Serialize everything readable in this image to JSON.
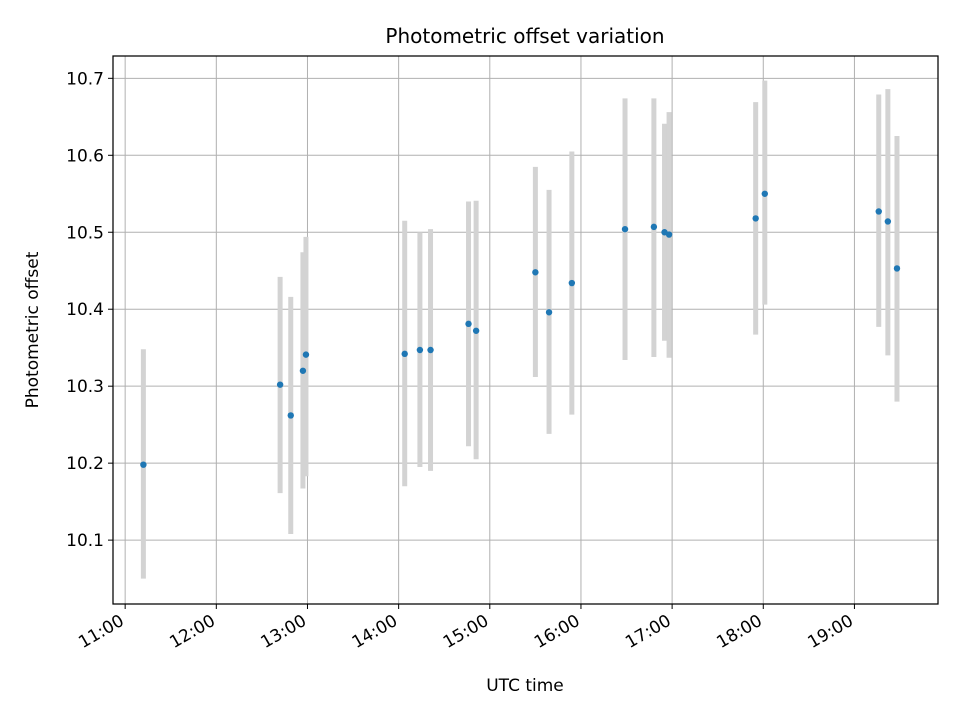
{
  "chart_data": {
    "type": "scatter",
    "title": "Photometric offset variation",
    "xlabel": "UTC time",
    "ylabel": "Photometric offset",
    "x_ticks": [
      "11:00",
      "12:00",
      "13:00",
      "14:00",
      "15:00",
      "16:00",
      "17:00",
      "18:00",
      "19:00"
    ],
    "y_ticks": [
      "10.1",
      "10.2",
      "10.3",
      "10.4",
      "10.5",
      "10.6",
      "10.7"
    ],
    "xlim": [
      "10:52",
      "19:55"
    ],
    "ylim": [
      10.017,
      10.729
    ],
    "grid": true,
    "colors": {
      "point": "#1f77b4",
      "errorbar": "#d3d3d3",
      "grid": "#b0b0b0"
    },
    "series": [
      {
        "x": [
          "11:12",
          "12:42",
          "12:49",
          "12:57",
          "12:59",
          "14:04",
          "14:14",
          "14:21",
          "14:46",
          "14:51",
          "15:30",
          "15:39",
          "15:54",
          "16:29",
          "16:48",
          "16:55",
          "16:58",
          "17:55",
          "18:01",
          "19:16",
          "19:22",
          "19:28"
        ],
        "y": [
          10.198,
          10.302,
          10.262,
          10.32,
          10.341,
          10.342,
          10.347,
          10.347,
          10.381,
          10.372,
          10.448,
          10.396,
          10.434,
          10.504,
          10.507,
          10.5,
          10.497,
          10.518,
          10.55,
          10.527,
          10.514,
          10.453
        ],
        "yerr_low": [
          10.05,
          10.161,
          10.108,
          10.167,
          10.183,
          10.17,
          10.195,
          10.19,
          10.222,
          10.205,
          10.312,
          10.238,
          10.263,
          10.334,
          10.338,
          10.359,
          10.337,
          10.367,
          10.406,
          10.377,
          10.34,
          10.28
        ],
        "yerr_high": [
          10.348,
          10.442,
          10.416,
          10.474,
          10.494,
          10.515,
          10.5,
          10.504,
          10.54,
          10.541,
          10.585,
          10.555,
          10.605,
          10.674,
          10.674,
          10.641,
          10.656,
          10.669,
          10.697,
          10.679,
          10.686,
          10.625
        ]
      }
    ]
  }
}
